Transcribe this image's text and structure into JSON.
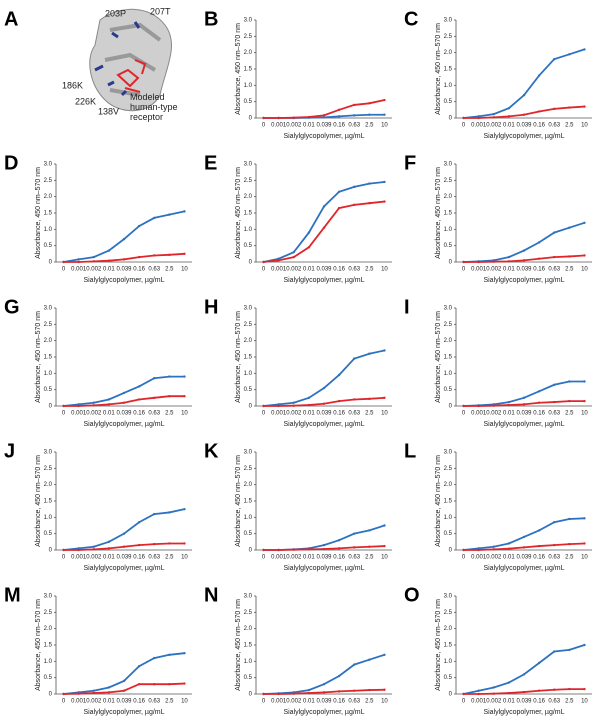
{
  "panel_a": {
    "label": "A",
    "annotations": [
      "203P",
      "207T",
      "186K",
      "226K",
      "138V",
      "Modeled human-type receptor"
    ]
  },
  "chart_data": [
    {
      "type": "line",
      "panel": "B",
      "ylabel": "Absorbance, 450 nm–570 nm",
      "xlabel": "Sialylglycopolymer, µg/mL",
      "categories": [
        "0",
        "0.001",
        "0.002",
        "0.01",
        "0.039",
        "0.16",
        "0.63",
        "2.5",
        "10"
      ],
      "ylim": [
        0,
        3
      ],
      "yticks": [
        0,
        0.5,
        {
          "value": 1,
          "label": "1.0"
        },
        1.5,
        {
          "value": 2,
          "label": "2.0"
        },
        2.5,
        {
          "value": 3,
          "label": "3.0"
        }
      ],
      "series": [
        {
          "color": "#2c72c1",
          "values": [
            0,
            0,
            0,
            0.01,
            0.02,
            0.05,
            0.08,
            0.1,
            0.1
          ]
        },
        {
          "color": "#e0262b",
          "values": [
            0,
            0,
            0.01,
            0.03,
            0.08,
            0.25,
            0.4,
            0.45,
            0.55
          ]
        }
      ]
    },
    {
      "type": "line",
      "panel": "C",
      "ylabel": "Absorbance, 450 nm–570 nm",
      "xlabel": "Sialylglycopolymer, µg/mL",
      "categories": [
        "0",
        "0.001",
        "0.002",
        "0.01",
        "0.039",
        "0.16",
        "0.63",
        "2.5",
        "10"
      ],
      "ylim": [
        0,
        3
      ],
      "yticks": [
        0,
        0.5,
        {
          "value": 1,
          "label": "1.0"
        },
        1.5,
        {
          "value": 2,
          "label": "2.0"
        },
        2.5,
        {
          "value": 3,
          "label": "3.0"
        }
      ],
      "series": [
        {
          "color": "#2c72c1",
          "values": [
            0,
            0.05,
            0.12,
            0.3,
            0.7,
            1.3,
            1.8,
            1.95,
            2.1
          ]
        },
        {
          "color": "#e0262b",
          "values": [
            0,
            0,
            0.02,
            0.05,
            0.1,
            0.2,
            0.28,
            0.32,
            0.35
          ]
        }
      ]
    },
    {
      "type": "line",
      "panel": "D",
      "ylabel": "Absorbance, 450 nm–570 nm",
      "xlabel": "Sialylglycopolymer, µg/mL",
      "categories": [
        "0",
        "0.001",
        "0.002",
        "0.01",
        "0.039",
        "0.16",
        "0.63",
        "2.5",
        "10"
      ],
      "ylim": [
        0,
        3
      ],
      "yticks": [
        0,
        0.5,
        {
          "value": 1,
          "label": "1.0"
        },
        1.5,
        {
          "value": 2,
          "label": "2.0"
        },
        2.5,
        {
          "value": 3,
          "label": "3.0"
        }
      ],
      "series": [
        {
          "color": "#2c72c1",
          "values": [
            0,
            0.08,
            0.15,
            0.35,
            0.7,
            1.1,
            1.35,
            1.45,
            1.55
          ]
        },
        {
          "color": "#e0262b",
          "values": [
            0,
            0,
            0.02,
            0.04,
            0.08,
            0.15,
            0.2,
            0.22,
            0.25
          ]
        }
      ]
    },
    {
      "type": "line",
      "panel": "E",
      "ylabel": "Absorbance, 450 nm–570 nm",
      "xlabel": "Sialylglycopolymer, µg/mL",
      "categories": [
        "0",
        "0.001",
        "0.002",
        "0.01",
        "0.039",
        "0.16",
        "0.63",
        "2.5",
        "10"
      ],
      "ylim": [
        0,
        3
      ],
      "yticks": [
        0,
        0.5,
        {
          "value": 1,
          "label": "1.0"
        },
        1.5,
        {
          "value": 2,
          "label": "2.0"
        },
        2.5,
        {
          "value": 3,
          "label": "3.0"
        }
      ],
      "series": [
        {
          "color": "#2c72c1",
          "values": [
            0,
            0.1,
            0.3,
            0.9,
            1.7,
            2.15,
            2.3,
            2.4,
            2.45
          ]
        },
        {
          "color": "#e0262b",
          "values": [
            0,
            0.05,
            0.15,
            0.45,
            1.05,
            1.65,
            1.75,
            1.8,
            1.85
          ]
        }
      ]
    },
    {
      "type": "line",
      "panel": "F",
      "ylabel": "Absorbance, 450 nm–570 nm",
      "xlabel": "Sialylglycopolymer, µg/mL",
      "categories": [
        "0",
        "0.001",
        "0.002",
        "0.01",
        "0.039",
        "0.16",
        "0.63",
        "2.5",
        "10"
      ],
      "ylim": [
        0,
        3
      ],
      "yticks": [
        0,
        0.5,
        {
          "value": 1,
          "label": "1.0"
        },
        1.5,
        {
          "value": 2,
          "label": "2.0"
        },
        2.5,
        {
          "value": 3,
          "label": "3.0"
        }
      ],
      "series": [
        {
          "color": "#2c72c1",
          "values": [
            0,
            0.02,
            0.05,
            0.15,
            0.35,
            0.6,
            0.9,
            1.05,
            1.2
          ]
        },
        {
          "color": "#e0262b",
          "values": [
            0,
            0,
            0.01,
            0.02,
            0.05,
            0.1,
            0.15,
            0.17,
            0.2
          ]
        }
      ]
    },
    {
      "type": "line",
      "panel": "G",
      "ylabel": "Absorbance, 450 nm–570 nm",
      "xlabel": "Sialylglycopolymer, µg/mL",
      "categories": [
        "0",
        "0.001",
        "0.002",
        "0.01",
        "0.039",
        "0.16",
        "0.63",
        "2.5",
        "10"
      ],
      "ylim": [
        0,
        3
      ],
      "yticks": [
        0,
        0.5,
        {
          "value": 1,
          "label": "1.0"
        },
        1.5,
        {
          "value": 2,
          "label": "2.0"
        },
        2.5,
        {
          "value": 3,
          "label": "3.0"
        }
      ],
      "series": [
        {
          "color": "#2c72c1",
          "values": [
            0,
            0.05,
            0.1,
            0.2,
            0.4,
            0.6,
            0.85,
            0.9,
            0.9
          ]
        },
        {
          "color": "#e0262b",
          "values": [
            0,
            0,
            0.02,
            0.05,
            0.1,
            0.2,
            0.25,
            0.3,
            0.3
          ]
        }
      ]
    },
    {
      "type": "line",
      "panel": "H",
      "ylabel": "Absorbance, 450 nm–570 nm",
      "xlabel": "Sialylglycopolymer, µg/mL",
      "categories": [
        "0",
        "0.001",
        "0.002",
        "0.01",
        "0.039",
        "0.16",
        "0.63",
        "2.5",
        "10"
      ],
      "ylim": [
        0,
        3
      ],
      "yticks": [
        0,
        0.5,
        {
          "value": 1,
          "label": "1.0"
        },
        1.5,
        {
          "value": 2,
          "label": "2.0"
        },
        2.5,
        {
          "value": 3,
          "label": "3.0"
        }
      ],
      "series": [
        {
          "color": "#2c72c1",
          "values": [
            0,
            0.05,
            0.1,
            0.25,
            0.55,
            0.95,
            1.45,
            1.6,
            1.7
          ]
        },
        {
          "color": "#e0262b",
          "values": [
            0,
            0,
            0.01,
            0.03,
            0.07,
            0.15,
            0.2,
            0.22,
            0.25
          ]
        }
      ]
    },
    {
      "type": "line",
      "panel": "I",
      "ylabel": "Absorbance, 450 nm–570 nm",
      "xlabel": "Sialylglycopolymer, µg/mL",
      "categories": [
        "0",
        "0.001",
        "0.002",
        "0.01",
        "0.039",
        "0.16",
        "0.63",
        "2.5",
        "10"
      ],
      "ylim": [
        0,
        3
      ],
      "yticks": [
        0,
        0.5,
        {
          "value": 1,
          "label": "1.0"
        },
        1.5,
        {
          "value": 2,
          "label": "2.0"
        },
        2.5,
        {
          "value": 3,
          "label": "3.0"
        }
      ],
      "series": [
        {
          "color": "#2c72c1",
          "values": [
            0,
            0.02,
            0.05,
            0.12,
            0.25,
            0.45,
            0.65,
            0.75,
            0.75
          ]
        },
        {
          "color": "#e0262b",
          "values": [
            0,
            0,
            0.01,
            0.03,
            0.05,
            0.1,
            0.12,
            0.15,
            0.15
          ]
        }
      ]
    },
    {
      "type": "line",
      "panel": "J",
      "ylabel": "Absorbance, 450 nm–570 nm",
      "xlabel": "Sialylglycopolymer, µg/mL",
      "categories": [
        "0",
        "0.001",
        "0.002",
        "0.01",
        "0.039",
        "0.16",
        "0.63",
        "2.5",
        "10"
      ],
      "ylim": [
        0,
        3
      ],
      "yticks": [
        0,
        0.5,
        {
          "value": 1,
          "label": "1.0"
        },
        1.5,
        {
          "value": 2,
          "label": "2.0"
        },
        2.5,
        {
          "value": 3,
          "label": "3.0"
        }
      ],
      "series": [
        {
          "color": "#2c72c1",
          "values": [
            0,
            0.05,
            0.1,
            0.25,
            0.5,
            0.85,
            1.1,
            1.15,
            1.25
          ]
        },
        {
          "color": "#e0262b",
          "values": [
            0,
            0,
            0.02,
            0.05,
            0.1,
            0.15,
            0.18,
            0.2,
            0.2
          ]
        }
      ]
    },
    {
      "type": "line",
      "panel": "K",
      "ylabel": "Absorbance, 450 nm–570 nm",
      "xlabel": "Sialylglycopolymer, µg/mL",
      "categories": [
        "0",
        "0.001",
        "0.002",
        "0.01",
        "0.039",
        "0.16",
        "0.63",
        "2.5",
        "10"
      ],
      "ylim": [
        0,
        3
      ],
      "yticks": [
        0,
        0.5,
        {
          "value": 1,
          "label": "1.0"
        },
        1.5,
        {
          "value": 2,
          "label": "2.0"
        },
        2.5,
        {
          "value": 3,
          "label": "3.0"
        }
      ],
      "series": [
        {
          "color": "#2c72c1",
          "values": [
            0,
            0,
            0.02,
            0.05,
            0.15,
            0.3,
            0.5,
            0.6,
            0.75
          ]
        },
        {
          "color": "#e0262b",
          "values": [
            0,
            0,
            0.01,
            0.02,
            0.03,
            0.05,
            0.08,
            0.1,
            0.12
          ]
        }
      ]
    },
    {
      "type": "line",
      "panel": "L",
      "ylabel": "Absorbance, 450 nm–570 nm",
      "xlabel": "Sialylglycopolymer, µg/mL",
      "categories": [
        "0",
        "0.001",
        "0.002",
        "0.01",
        "0.039",
        "0.16",
        "0.63",
        "2.5",
        "10"
      ],
      "ylim": [
        0,
        3
      ],
      "yticks": [
        0,
        0.5,
        {
          "value": 1,
          "label": "1.0"
        },
        1.5,
        {
          "value": 2,
          "label": "2.0"
        },
        2.5,
        {
          "value": 3,
          "label": "3.0"
        }
      ],
      "series": [
        {
          "color": "#2c72c1",
          "values": [
            0,
            0.05,
            0.1,
            0.2,
            0.4,
            0.6,
            0.85,
            0.95,
            0.97
          ]
        },
        {
          "color": "#e0262b",
          "values": [
            0,
            0,
            0.02,
            0.04,
            0.08,
            0.12,
            0.15,
            0.18,
            0.2
          ]
        }
      ]
    },
    {
      "type": "line",
      "panel": "M",
      "ylabel": "Absorbance, 450 nm–570 nm",
      "xlabel": "Sialylglycopolymer, µg/mL",
      "categories": [
        "0",
        "0.001",
        "0.002",
        "0.01",
        "0.039",
        "0.16",
        "0.63",
        "2.5",
        "10"
      ],
      "ylim": [
        0,
        3
      ],
      "yticks": [
        0,
        0.5,
        {
          "value": 1,
          "label": "1.0"
        },
        1.5,
        {
          "value": 2,
          "label": "2.0"
        },
        2.5,
        {
          "value": 3,
          "label": "3.0"
        }
      ],
      "series": [
        {
          "color": "#2c72c1",
          "values": [
            0,
            0.05,
            0.1,
            0.2,
            0.4,
            0.85,
            1.1,
            1.2,
            1.25
          ]
        },
        {
          "color": "#e0262b",
          "values": [
            0,
            0.01,
            0.03,
            0.05,
            0.1,
            0.3,
            0.3,
            0.3,
            0.32
          ]
        }
      ]
    },
    {
      "type": "line",
      "panel": "N",
      "ylabel": "Absorbance, 450 nm–570 nm",
      "xlabel": "Sialylglycopolymer, µg/mL",
      "categories": [
        "0",
        "0.001",
        "0.002",
        "0.01",
        "0.039",
        "0.16",
        "0.63",
        "2.5",
        "10"
      ],
      "ylim": [
        0,
        3
      ],
      "yticks": [
        0,
        0.5,
        {
          "value": 1,
          "label": "1.0"
        },
        1.5,
        {
          "value": 2,
          "label": "2.0"
        },
        2.5,
        {
          "value": 3,
          "label": "3.0"
        }
      ],
      "series": [
        {
          "color": "#2c72c1",
          "values": [
            0,
            0.02,
            0.05,
            0.12,
            0.3,
            0.55,
            0.9,
            1.05,
            1.2
          ]
        },
        {
          "color": "#e0262b",
          "values": [
            0,
            0,
            0.01,
            0.03,
            0.05,
            0.08,
            0.1,
            0.12,
            0.13
          ]
        }
      ]
    },
    {
      "type": "line",
      "panel": "O",
      "ylabel": "Absorbance, 450 nm–570 nm",
      "xlabel": "Sialylglycopolymer, µg/mL",
      "categories": [
        "0",
        "0.001",
        "0.002",
        "0.01",
        "0.039",
        "0.16",
        "0.63",
        "2.5",
        "10"
      ],
      "ylim": [
        0,
        3
      ],
      "yticks": [
        0,
        0.5,
        {
          "value": 1,
          "label": "1.0"
        },
        1.5,
        {
          "value": 2,
          "label": "2.0"
        },
        2.5,
        {
          "value": 3,
          "label": "3.0"
        }
      ],
      "series": [
        {
          "color": "#2c72c1",
          "values": [
            0,
            0.1,
            0.2,
            0.35,
            0.6,
            0.95,
            1.3,
            1.35,
            1.5
          ]
        },
        {
          "color": "#e0262b",
          "values": [
            0,
            0,
            0.01,
            0.03,
            0.06,
            0.1,
            0.13,
            0.15,
            0.15
          ]
        }
      ]
    }
  ]
}
